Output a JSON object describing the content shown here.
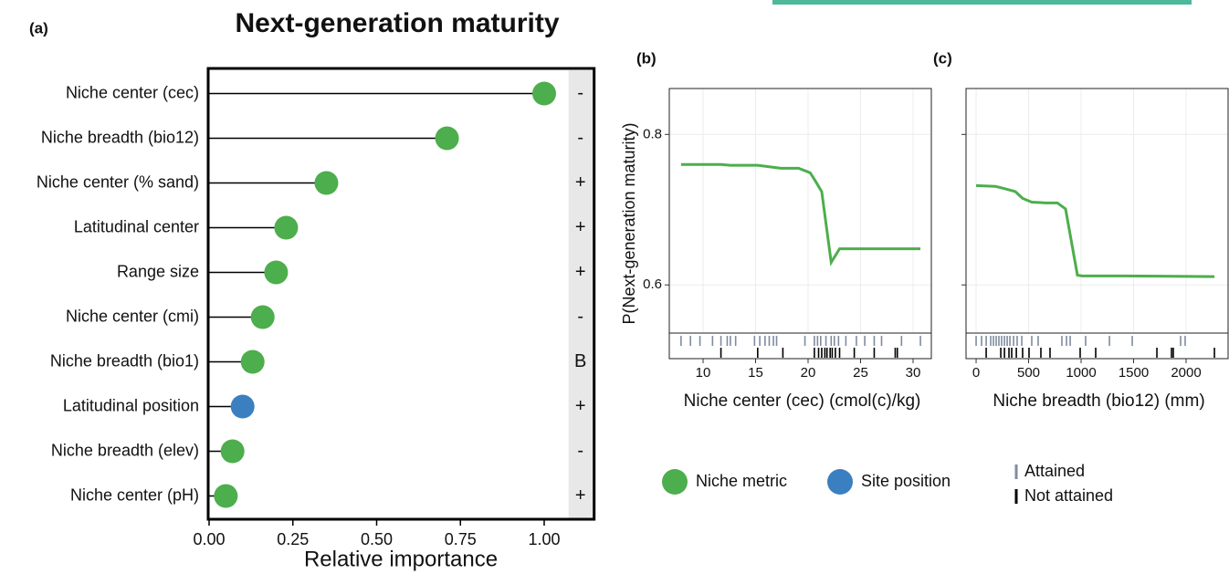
{
  "chart_data": [
    {
      "type": "lollipop",
      "panel": "(a)",
      "title": "Next-generation maturity",
      "xlabel": "Relative importance",
      "categories": [
        "Niche center (cec)",
        "Niche breadth (bio12)",
        "Niche center (% sand)",
        "Latitudinal center",
        "Range size",
        "Niche center (cmi)",
        "Niche breadth (bio1)",
        "Latitudinal position",
        "Niche breadth (elev)",
        "Niche center (pH)"
      ],
      "series": [
        {
          "name": "Niche metric",
          "color": "#4cae4c",
          "values": [
            1.0,
            0.71,
            0.35,
            0.23,
            0.2,
            0.16,
            0.13,
            null,
            0.07,
            0.05
          ]
        },
        {
          "name": "Site position",
          "color": "#3a7fc0",
          "values": [
            null,
            null,
            null,
            null,
            null,
            null,
            null,
            0.1,
            null,
            null
          ]
        }
      ],
      "signs": [
        "-",
        "-",
        "+",
        "+",
        "+",
        "-",
        "B",
        "+",
        "-",
        "+"
      ],
      "xlim": [
        0,
        1.07
      ],
      "xticks": [
        {
          "value": 0,
          "label": "0.00"
        },
        0.25,
        {
          "value": 0.5,
          "label": "0.50"
        },
        0.75,
        {
          "value": 1,
          "label": "1.00"
        }
      ]
    },
    {
      "type": "line",
      "panel": "(b)",
      "xlabel": "Niche center (cec) (cmol(c)/kg)",
      "ylabel": "P(Next-generation maturity)",
      "x": [
        7.9,
        11.7,
        12.6,
        15.2,
        17.4,
        19.1,
        20.2,
        20.7,
        21.3,
        22.2,
        23.0,
        30.7
      ],
      "values": [
        0.76,
        0.76,
        0.759,
        0.759,
        0.755,
        0.755,
        0.749,
        0.738,
        0.724,
        0.63,
        0.648,
        0.648
      ],
      "color": "#4cae4c",
      "xlim": [
        6.78,
        31.74
      ],
      "xticks": [
        10,
        15,
        20,
        25,
        30
      ],
      "ylim": [
        0.536,
        0.861
      ],
      "yticks": [
        0.6,
        0.8
      ],
      "ytick_labels": true,
      "grid": true,
      "rug": [
        {
          "x": [
            7.9,
            8.8,
            9.7,
            10.9,
            11.7,
            12.3,
            12.6,
            13.1,
            14.9,
            15.4,
            15.9,
            16.3,
            16.7,
            17.0,
            19.7,
            20.6,
            20.9,
            21.2,
            21.7,
            22.2,
            22.5,
            22.9,
            23.6,
            24.6,
            25.4,
            26.3,
            27.0,
            28.9,
            30.7
          ]
        },
        {
          "x": [
            11.7,
            15.2,
            17.6,
            20.6,
            21.0,
            21.3,
            21.6,
            21.8,
            22.1,
            22.3,
            22.6,
            23.0,
            24.4,
            26.3,
            28.3,
            28.5
          ]
        }
      ]
    },
    {
      "type": "line",
      "panel": "(c)",
      "xlabel": "Niche breadth (bio12) (mm)",
      "x": [
        0,
        183,
        270,
        374,
        443,
        530,
        661,
        774,
        852,
        965,
        1009,
        1400,
        2270
      ],
      "values": [
        0.732,
        0.731,
        0.728,
        0.724,
        0.715,
        0.71,
        0.709,
        0.709,
        0.701,
        0.613,
        0.612,
        0.612,
        0.611
      ],
      "color": "#4cae4c",
      "xlim": [
        -96,
        2400
      ],
      "xticks": [
        0,
        500,
        1000,
        1500,
        2000
      ],
      "ylim": [
        0.536,
        0.861
      ],
      "yticks": [
        0.6,
        0.8
      ],
      "ytick_labels": false,
      "grid": true,
      "rug": [
        {
          "x": [
            0,
            52,
            96,
            139,
            165,
            191,
            217,
            243,
            270,
            296,
            322,
            357,
            391,
            435,
            530,
            591,
            817,
            861,
            896,
            1043,
            1270,
            1487,
            1948,
            1991
          ]
        },
        {
          "x": [
            96,
            235,
            270,
            313,
            339,
            383,
            443,
            504,
            617,
            704,
            991,
            1139,
            1722,
            1861,
            1878,
            2270
          ]
        }
      ]
    }
  ],
  "rug_legend": [
    {
      "name": "Attained",
      "color": "#7f8ca0"
    },
    {
      "name": "Not attained",
      "color": "#000000"
    }
  ]
}
